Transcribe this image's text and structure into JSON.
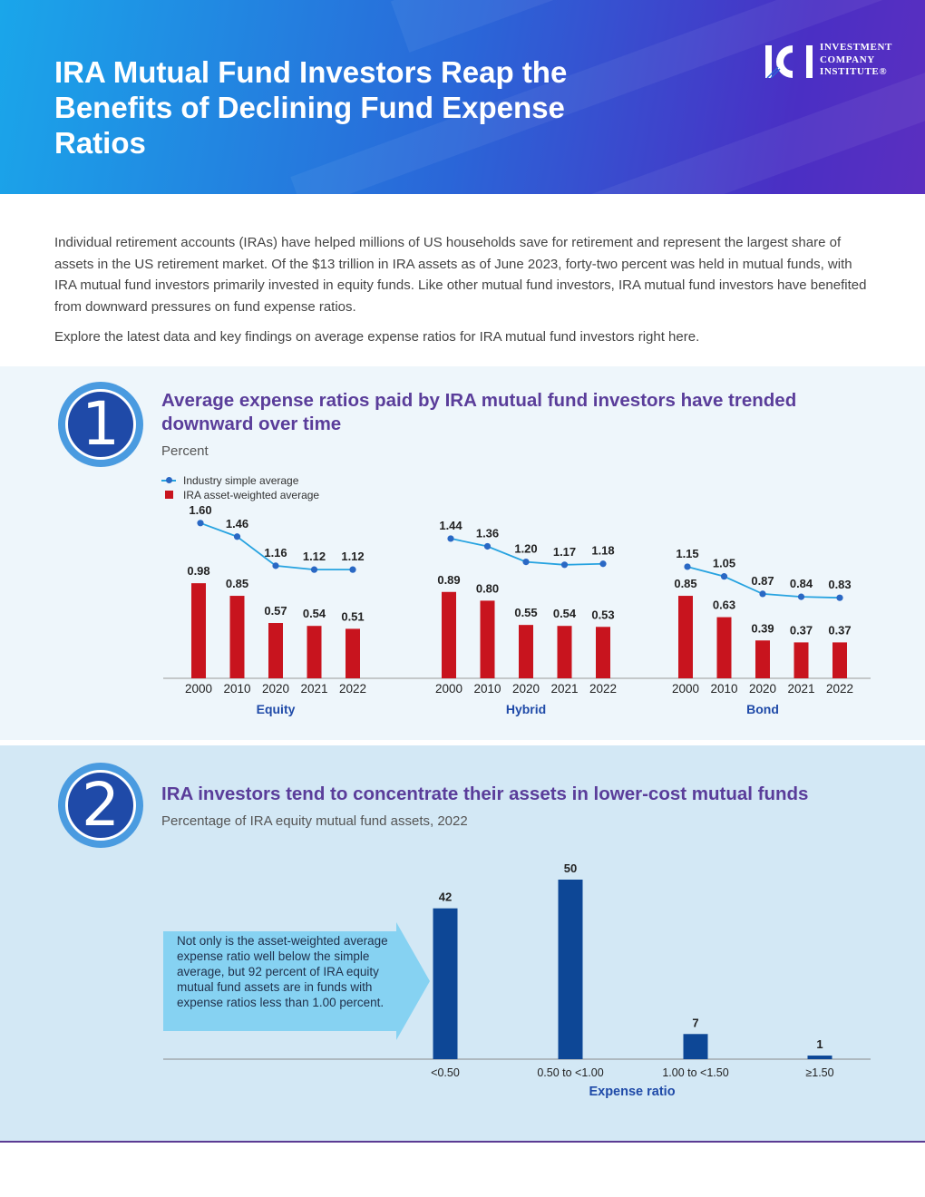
{
  "header": {
    "title": "IRA Mutual Fund Investors Reap the Benefits of Declining Fund Expense Ratios",
    "logo_text_lines": [
      "INVESTMENT",
      "COMPANY",
      "INSTITUTE®"
    ],
    "logo_mark": "ICI"
  },
  "intro": {
    "paragraph1": "Individual retirement accounts (IRAs) have helped millions of US households save for retirement and represent the largest share of assets in the US retirement market. Of the $13 trillion in IRA assets as of June 2023, forty-two percent was held in mutual funds, with IRA mutual fund investors primarily invested in equity funds. Like other mutual fund investors, IRA mutual fund investors have benefited from downward pressures on fund expense ratios.",
    "paragraph2": "Explore the latest data and key findings on average expense ratios for IRA mutual fund investors right here."
  },
  "section1": {
    "number": "1",
    "title": "Average expense ratios paid by IRA mutual fund investors have trended downward over time",
    "subtitle": "Percent"
  },
  "section2": {
    "number": "2",
    "title": "IRA investors tend to concentrate their assets in lower-cost mutual funds",
    "subtitle": "Percentage of IRA equity mutual fund assets, 2022",
    "callout": "Not only is the asset-weighted average expense ratio well below the simple average, but 92 percent of IRA equity mutual fund assets are in funds with expense ratios less than 1.00 percent."
  },
  "colors": {
    "bar_red": "#c8141e",
    "line_blue": "#27a3e0",
    "dot_blue": "#2a68c4",
    "bar_navy": "#0d4796",
    "title_purple": "#5a3d9a",
    "group_label_blue": "#1f4aa8"
  },
  "chart_data": [
    {
      "type": "bar",
      "legend": [
        "Industry simple average",
        "IRA asset-weighted average"
      ],
      "legend_placement": "top-left",
      "groups": [
        {
          "name": "Equity",
          "categories": [
            "2000",
            "2010",
            "2020",
            "2021",
            "2022"
          ],
          "series": [
            {
              "name": "Industry simple average",
              "kind": "line",
              "values": [
                1.6,
                1.46,
                1.16,
                1.12,
                1.12
              ]
            },
            {
              "name": "IRA asset-weighted average",
              "kind": "bar",
              "values": [
                0.98,
                0.85,
                0.57,
                0.54,
                0.51
              ]
            }
          ]
        },
        {
          "name": "Hybrid",
          "categories": [
            "2000",
            "2010",
            "2020",
            "2021",
            "2022"
          ],
          "series": [
            {
              "name": "Industry simple average",
              "kind": "line",
              "values": [
                1.44,
                1.36,
                1.2,
                1.17,
                1.18
              ]
            },
            {
              "name": "IRA asset-weighted average",
              "kind": "bar",
              "values": [
                0.89,
                0.8,
                0.55,
                0.54,
                0.53
              ]
            }
          ]
        },
        {
          "name": "Bond",
          "categories": [
            "2000",
            "2010",
            "2020",
            "2021",
            "2022"
          ],
          "series": [
            {
              "name": "Industry simple average",
              "kind": "line",
              "values": [
                1.15,
                1.05,
                0.87,
                0.84,
                0.83
              ]
            },
            {
              "name": "IRA asset-weighted average",
              "kind": "bar",
              "values": [
                0.85,
                0.63,
                0.39,
                0.37,
                0.37
              ]
            }
          ]
        }
      ]
    },
    {
      "type": "bar",
      "categories": [
        "<0.50",
        "0.50 to <1.00",
        "1.00 to <1.50",
        "≥1.50"
      ],
      "values": [
        42,
        50,
        7,
        1
      ],
      "xlabel": "Expense ratio",
      "ylabel": ""
    }
  ]
}
